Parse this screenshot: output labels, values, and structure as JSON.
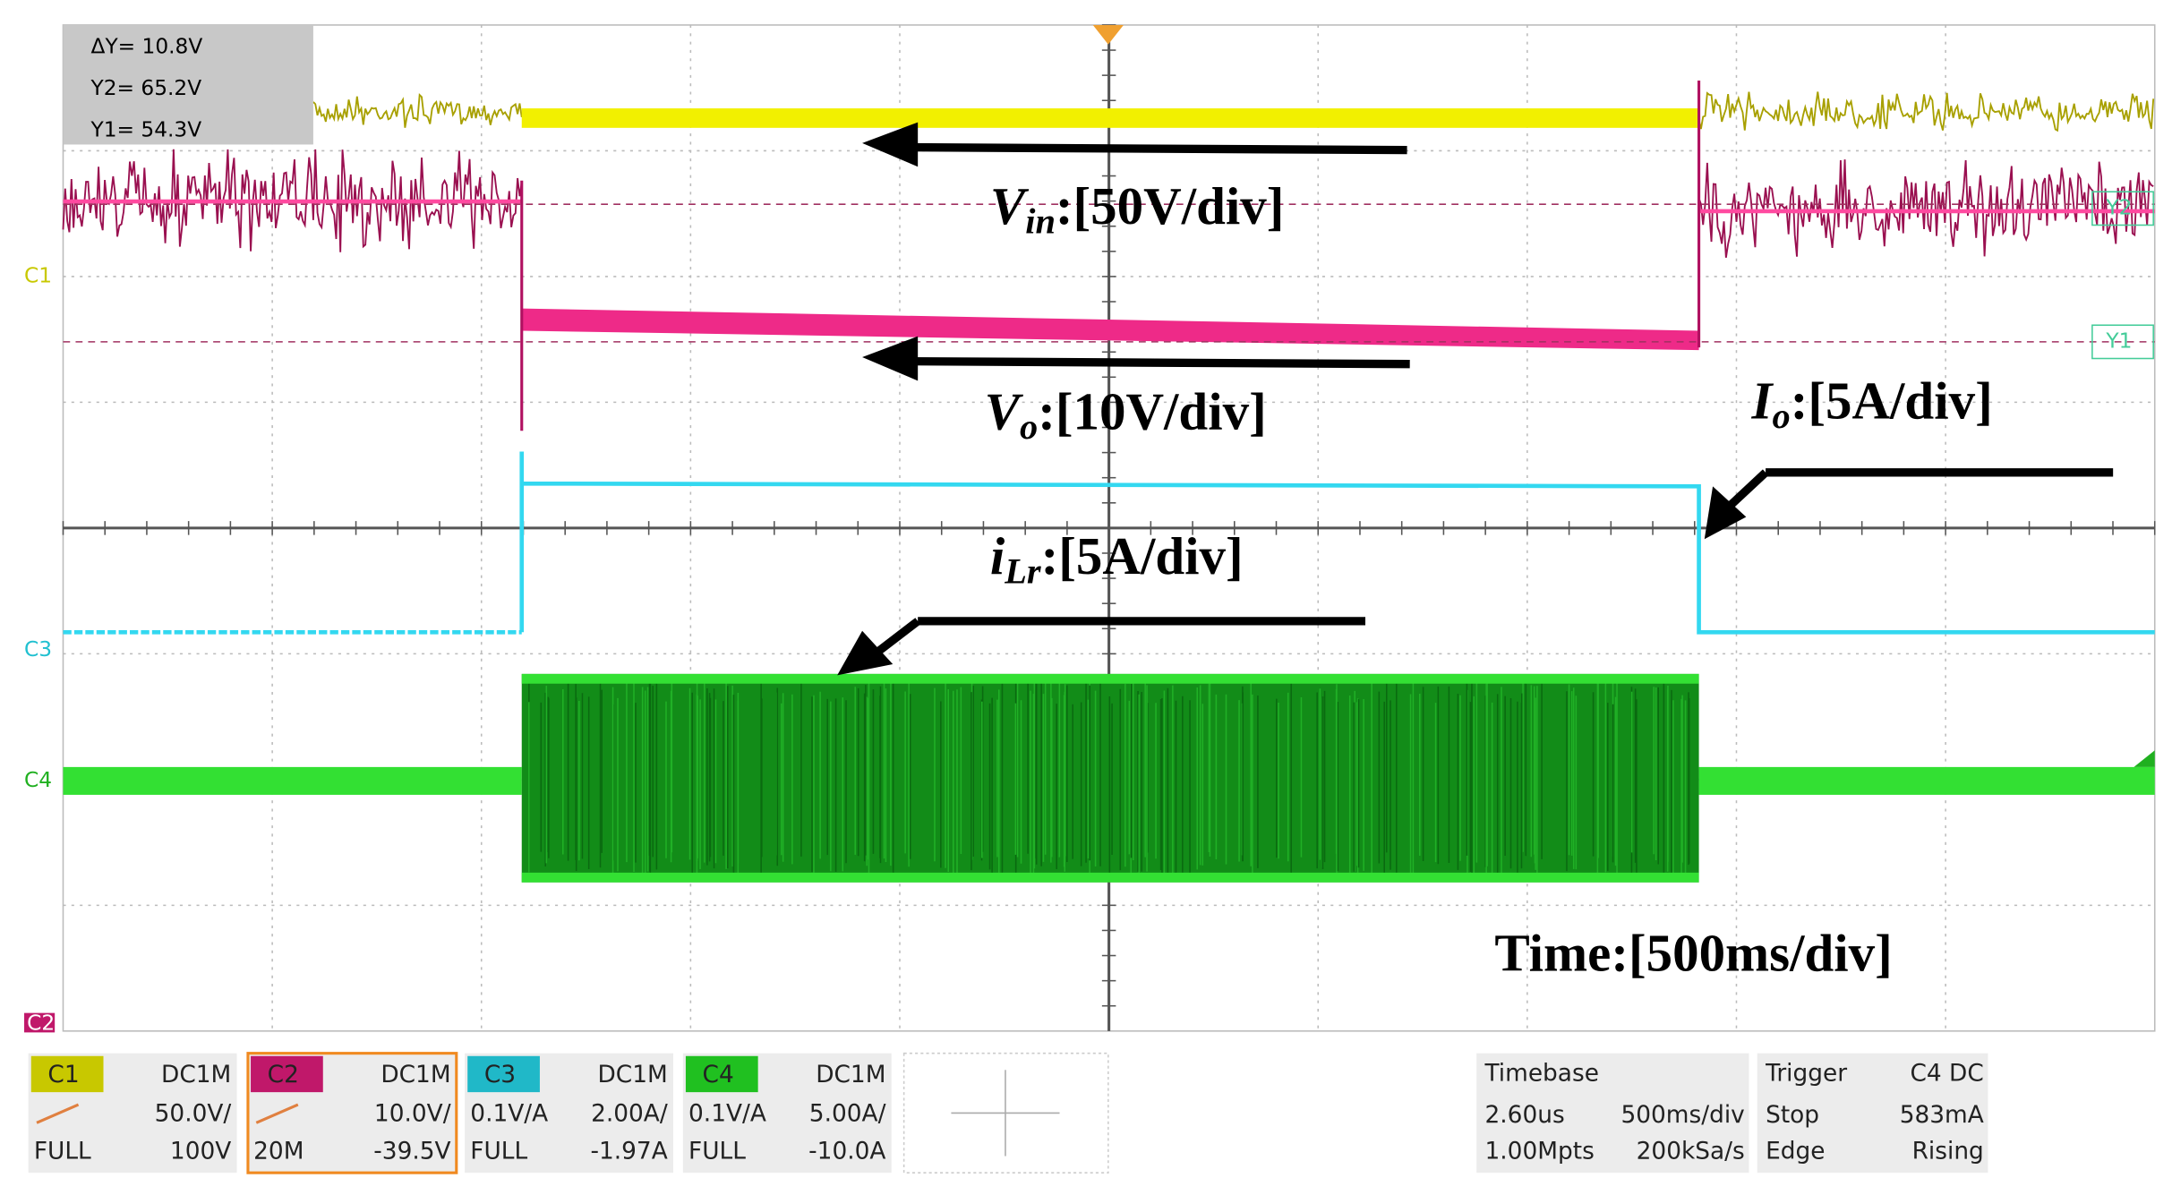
{
  "cursor": {
    "delta": "ΔY= 10.8V",
    "y2": "Y2= 65.2V",
    "y1": "Y1= 54.3V"
  },
  "markers": {
    "c1": "C1",
    "c2": "C2",
    "c3": "C3",
    "c4": "C4",
    "y1": "Y1",
    "y2": "Y2"
  },
  "annotations": {
    "vin": {
      "name": "V",
      "sub": "in",
      "text": ":[50V/div]"
    },
    "vo": {
      "name": "V",
      "sub": "o",
      "text": ":[10V/div]"
    },
    "io": {
      "name": "I",
      "sub": "o",
      "text": ":[5A/div]"
    },
    "ilr": {
      "name": "i",
      "sub": "Lr",
      "text": ":[5A/div]"
    },
    "time": "Time:[500ms/div]"
  },
  "channels": [
    {
      "label": "C1",
      "coupling": "DC1M",
      "scale": "50.0V/",
      "offset": "100V",
      "bandwidth": "FULL"
    },
    {
      "label": "C2",
      "coupling": "DC1M",
      "scale": "10.0V/",
      "offset": "-39.5V",
      "bandwidth": "20M"
    },
    {
      "label": "C3",
      "coupling": "DC1M",
      "probe": "0.1V/A",
      "scale": "2.00A/",
      "offset": "-1.97A",
      "bandwidth": "FULL"
    },
    {
      "label": "C4",
      "coupling": "DC1M",
      "probe": "0.1V/A",
      "scale": "5.00A/",
      "offset": "-10.0A",
      "bandwidth": "FULL"
    }
  ],
  "timebase": {
    "title": "Timebase",
    "delay": "2.60us",
    "scale": "500ms/div",
    "points": "1.00Mpts",
    "rate": "200kSa/s"
  },
  "trigger": {
    "title": "Trigger",
    "source": "C4 DC",
    "mode": "Stop",
    "level": "583mA",
    "type": "Edge",
    "slope": "Rising"
  }
}
